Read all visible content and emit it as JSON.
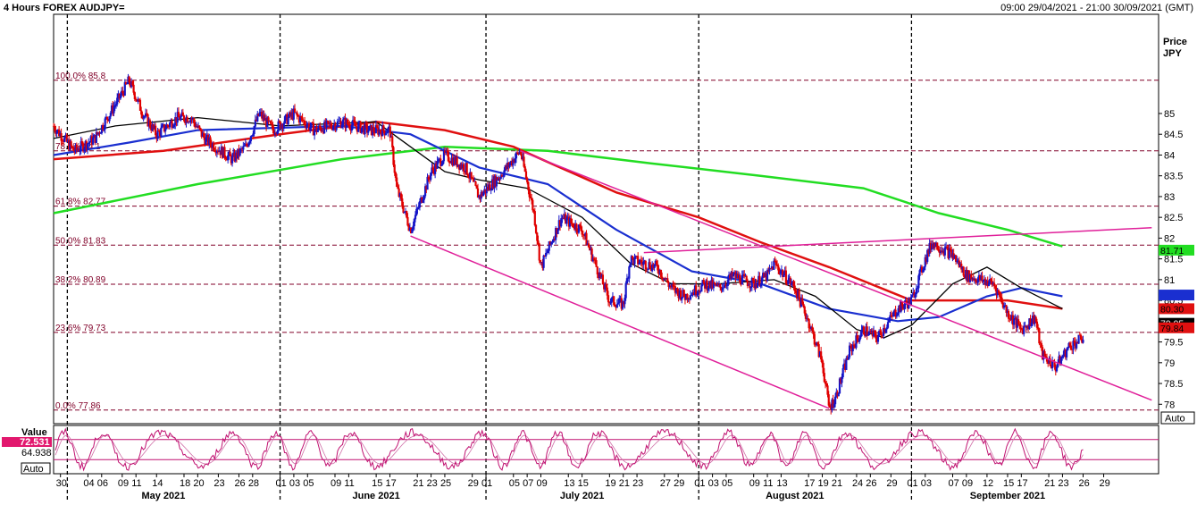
{
  "header": {
    "title": "4 Hours FOREX AUDJPY=",
    "date_range": "09:00 29/04/2021 - 21:00 30/09/2021 (GMT)"
  },
  "axis": {
    "price_label_1": "Price",
    "price_label_2": "JPY",
    "auto_label": "Auto",
    "osc_value_label": "Value",
    "osc_auto_label": "Auto"
  },
  "colors": {
    "up": "#1515c8",
    "down": "#e00000",
    "sma_fast": "#000000",
    "sma_mid": "#1a2fd0",
    "sma_slow": "#e01010",
    "sma_200": "#22dd22",
    "channel": "#e0209a",
    "fib": "#800028",
    "osc": "#c01070"
  },
  "chart_data": [
    {
      "type": "candlestick",
      "title": "4 Hours FOREX AUDJPY=",
      "ylabel": "Price JPY",
      "ylim": [
        77.8,
        86.0
      ],
      "y_ticks": [
        78,
        78.5,
        79,
        79.5,
        80,
        80.5,
        81,
        81.5,
        82,
        82.5,
        83,
        83.5,
        84,
        84.5,
        85
      ],
      "x_tick_labels": [
        "30",
        "04",
        "06",
        "09",
        "11",
        "14",
        "18",
        "20",
        "23",
        "26",
        "28",
        "01",
        "03",
        "05",
        "09",
        "11",
        "15",
        "17",
        "21",
        "23",
        "25",
        "29",
        "01",
        "05",
        "07",
        "09",
        "13",
        "15",
        "19",
        "21",
        "23",
        "27",
        "29",
        "01",
        "03",
        "05",
        "09",
        "11",
        "13",
        "17",
        "19",
        "21",
        "24",
        "26",
        "29",
        "01",
        "03",
        "07",
        "09",
        "12",
        "15",
        "17",
        "21",
        "23",
        "26",
        "29"
      ],
      "months": [
        "May 2021",
        "June 2021",
        "July 2021",
        "August 2021",
        "September 2021"
      ],
      "price_path": [
        [
          "2021-04-29",
          84.7
        ],
        [
          "2021-05-02",
          84.1
        ],
        [
          "2021-05-05",
          84.4
        ],
        [
          "2021-05-09",
          85.5
        ],
        [
          "2021-05-10",
          85.8
        ],
        [
          "2021-05-12",
          85.0
        ],
        [
          "2021-05-14",
          84.5
        ],
        [
          "2021-05-17",
          84.9
        ],
        [
          "2021-05-19",
          84.9
        ],
        [
          "2021-05-21",
          84.4
        ],
        [
          "2021-05-25",
          83.9
        ],
        [
          "2021-05-27",
          84.2
        ],
        [
          "2021-05-29",
          85.0
        ],
        [
          "2021-05-31",
          84.6
        ],
        [
          "2021-06-03",
          85.0
        ],
        [
          "2021-06-06",
          84.6
        ],
        [
          "2021-06-10",
          84.8
        ],
        [
          "2021-06-14",
          84.6
        ],
        [
          "2021-06-17",
          84.6
        ],
        [
          "2021-06-18",
          83.2
        ],
        [
          "2021-06-20",
          82.2
        ],
        [
          "2021-06-23",
          83.6
        ],
        [
          "2021-06-25",
          84.0
        ],
        [
          "2021-06-28",
          83.7
        ],
        [
          "2021-06-30",
          83.0
        ],
        [
          "2021-07-03",
          83.5
        ],
        [
          "2021-07-06",
          84.1
        ],
        [
          "2021-07-08",
          82.6
        ],
        [
          "2021-07-09",
          81.3
        ],
        [
          "2021-07-12",
          82.5
        ],
        [
          "2021-07-15",
          82.2
        ],
        [
          "2021-07-19",
          80.5
        ],
        [
          "2021-07-21",
          80.4
        ],
        [
          "2021-07-22",
          81.5
        ],
        [
          "2021-07-26",
          81.3
        ],
        [
          "2021-07-28",
          80.8
        ],
        [
          "2021-07-30",
          80.6
        ],
        [
          "2021-08-02",
          80.9
        ],
        [
          "2021-08-04",
          80.8
        ],
        [
          "2021-08-06",
          81.1
        ],
        [
          "2021-08-09",
          80.9
        ],
        [
          "2021-08-11",
          81.1
        ],
        [
          "2021-08-12",
          81.4
        ],
        [
          "2021-08-15",
          80.8
        ],
        [
          "2021-08-17",
          80.0
        ],
        [
          "2021-08-19",
          79.0
        ],
        [
          "2021-08-20",
          77.9
        ],
        [
          "2021-08-21",
          78.2
        ],
        [
          "2021-08-23",
          79.3
        ],
        [
          "2021-08-25",
          79.8
        ],
        [
          "2021-08-27",
          79.6
        ],
        [
          "2021-08-30",
          80.3
        ],
        [
          "2021-09-01",
          80.5
        ],
        [
          "2021-09-03",
          81.5
        ],
        [
          "2021-09-04",
          81.9
        ],
        [
          "2021-09-07",
          81.6
        ],
        [
          "2021-09-09",
          81.1
        ],
        [
          "2021-09-11",
          81.0
        ],
        [
          "2021-09-13",
          80.9
        ],
        [
          "2021-09-15",
          80.2
        ],
        [
          "2021-09-17",
          79.8
        ],
        [
          "2021-09-19",
          80.1
        ],
        [
          "2021-09-20",
          79.2
        ],
        [
          "2021-09-22",
          78.9
        ],
        [
          "2021-09-24",
          79.4
        ],
        [
          "2021-09-26",
          79.6
        ]
      ],
      "sma_fast": [
        [
          "2021-04-29",
          84.4
        ],
        [
          "2021-05-08",
          84.7
        ],
        [
          "2021-05-20",
          84.9
        ],
        [
          "2021-06-01",
          84.7
        ],
        [
          "2021-06-15",
          84.8
        ],
        [
          "2021-06-20",
          84.2
        ],
        [
          "2021-06-25",
          83.6
        ],
        [
          "2021-06-30",
          83.4
        ],
        [
          "2021-07-07",
          83.2
        ],
        [
          "2021-07-15",
          82.5
        ],
        [
          "2021-07-22",
          81.4
        ],
        [
          "2021-07-28",
          80.9
        ],
        [
          "2021-08-04",
          80.9
        ],
        [
          "2021-08-12",
          81.0
        ],
        [
          "2021-08-18",
          80.6
        ],
        [
          "2021-08-24",
          79.8
        ],
        [
          "2021-08-28",
          79.6
        ],
        [
          "2021-09-01",
          79.9
        ],
        [
          "2021-09-07",
          80.9
        ],
        [
          "2021-09-12",
          81.3
        ],
        [
          "2021-09-17",
          80.8
        ],
        [
          "2021-09-23",
          80.3
        ]
      ],
      "sma_mid": [
        [
          "2021-04-29",
          84.0
        ],
        [
          "2021-05-10",
          84.3
        ],
        [
          "2021-05-20",
          84.6
        ],
        [
          "2021-06-10",
          84.7
        ],
        [
          "2021-06-20",
          84.5
        ],
        [
          "2021-06-30",
          83.7
        ],
        [
          "2021-07-10",
          83.3
        ],
        [
          "2021-07-20",
          82.2
        ],
        [
          "2021-07-31",
          81.2
        ],
        [
          "2021-08-10",
          80.9
        ],
        [
          "2021-08-20",
          80.3
        ],
        [
          "2021-08-30",
          80.0
        ],
        [
          "2021-09-05",
          80.1
        ],
        [
          "2021-09-12",
          80.6
        ],
        [
          "2021-09-17",
          80.8
        ],
        [
          "2021-09-23",
          80.6
        ]
      ],
      "sma_slow": [
        [
          "2021-04-29",
          83.9
        ],
        [
          "2021-05-15",
          84.1
        ],
        [
          "2021-06-01",
          84.5
        ],
        [
          "2021-06-15",
          84.8
        ],
        [
          "2021-06-25",
          84.6
        ],
        [
          "2021-07-05",
          84.2
        ],
        [
          "2021-07-20",
          83.1
        ],
        [
          "2021-08-01",
          82.5
        ],
        [
          "2021-08-10",
          81.9
        ],
        [
          "2021-08-20",
          81.3
        ],
        [
          "2021-09-01",
          80.5
        ],
        [
          "2021-09-15",
          80.5
        ],
        [
          "2021-09-23",
          80.3
        ]
      ],
      "sma_200": [
        [
          "2021-04-29",
          82.6
        ],
        [
          "2021-05-20",
          83.3
        ],
        [
          "2021-06-10",
          83.9
        ],
        [
          "2021-06-25",
          84.2
        ],
        [
          "2021-07-10",
          84.1
        ],
        [
          "2021-07-25",
          83.8
        ],
        [
          "2021-08-10",
          83.5
        ],
        [
          "2021-08-25",
          83.2
        ],
        [
          "2021-09-05",
          82.6
        ],
        [
          "2021-09-15",
          82.2
        ],
        [
          "2021-09-23",
          81.8
        ]
      ],
      "fib_levels": [
        {
          "label": "100.0%",
          "value": 85.8
        },
        {
          "label": "78.6%",
          "value": 84.1
        },
        {
          "label": "61.8%",
          "value": 82.77
        },
        {
          "label": "50.0%",
          "value": 81.83
        },
        {
          "label": "38.2%",
          "value": 80.89
        },
        {
          "label": "23.6%",
          "value": 79.73
        },
        {
          "label": "0.0%",
          "value": 77.86
        }
      ],
      "channel_lines": [
        {
          "from": [
            "2021-07-06",
            84.1
          ],
          "to": [
            "2021-10-06",
            78.1
          ]
        },
        {
          "from": [
            "2021-06-20",
            82.05
          ],
          "to": [
            "2021-08-20",
            77.9
          ]
        },
        {
          "from": [
            "2021-07-24",
            81.65
          ],
          "to": [
            "2021-10-06",
            82.25
          ]
        }
      ],
      "price_tags": [
        {
          "value": 81.71,
          "label": "81.71",
          "bg": "#22dd22",
          "fg": "#000000"
        },
        {
          "value": 80.63,
          "label": "",
          "bg": "#1a2fd0",
          "fg": "#ffffff"
        },
        {
          "value": 80.3,
          "label": "80.30",
          "bg": "#e01010",
          "fg": "#000000"
        },
        {
          "value": 79.95,
          "label": "79.95",
          "bg": "#000000",
          "fg": "#ffffff"
        },
        {
          "value": 79.84,
          "label": "79.84",
          "bg": "#e01010",
          "fg": "#000000"
        }
      ]
    },
    {
      "type": "line",
      "title": "",
      "ylabel": "Value",
      "current_values": [
        "72.531",
        "64.938"
      ],
      "upper_band": 72.5,
      "lower_band": 27.5
    }
  ]
}
